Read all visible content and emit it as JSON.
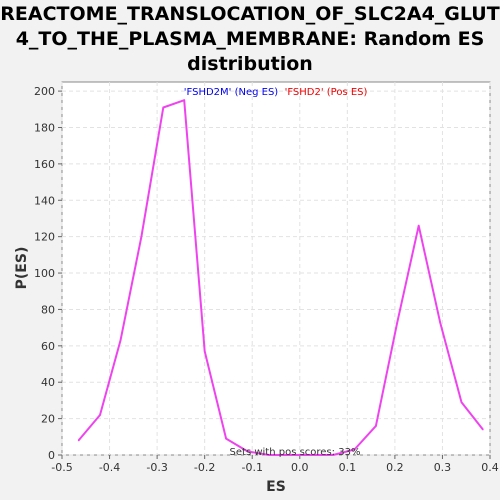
{
  "chart_data": {
    "type": "line",
    "title": "REACTOME_TRANSLOCATION_OF_SLC2A4_GLUT\n4_TO_THE_PLASMA_MEMBRANE: Random ES\ndistribution",
    "xlabel": "ES",
    "ylabel": "P(ES)",
    "xlim": [
      -0.5,
      0.4
    ],
    "ylim": [
      0,
      205
    ],
    "xticks": [
      -0.5,
      -0.4,
      -0.3,
      -0.2,
      -0.1,
      0.0,
      0.1,
      0.2,
      0.3,
      0.4
    ],
    "xtick_labels": [
      "-0.5",
      "-0.4",
      "-0.3",
      "-0.2",
      "-0.1",
      "0.0",
      "0.1",
      "0.2",
      "0.3",
      "0.4"
    ],
    "yticks": [
      0,
      20,
      40,
      60,
      80,
      100,
      120,
      140,
      160,
      180,
      200
    ],
    "ytick_labels": [
      "0",
      "20",
      "40",
      "60",
      "80",
      "100",
      "120",
      "140",
      "160",
      "180",
      "200"
    ],
    "grid": true,
    "series": [
      {
        "color": "#ee44ee",
        "x": [
          -0.465,
          -0.42,
          -0.377,
          -0.333,
          -0.287,
          -0.243,
          -0.2,
          -0.155,
          -0.11,
          -0.065,
          -0.02,
          0.025,
          0.07,
          0.115,
          0.16,
          0.205,
          0.25,
          0.295,
          0.34,
          0.385
        ],
        "y": [
          8,
          22,
          63,
          120,
          191,
          195,
          57,
          9,
          2,
          0,
          0,
          0,
          0,
          3,
          16,
          73,
          126,
          73,
          29,
          14
        ]
      }
    ],
    "annotations": {
      "neg_label": "'FSHD2M' (Neg ES)",
      "neg_color": "#0000ee",
      "pos_label": "'FSHD2' (Pos ES)",
      "pos_color": "#ee0000",
      "footer": "Sets with pos scores: 33%"
    }
  }
}
